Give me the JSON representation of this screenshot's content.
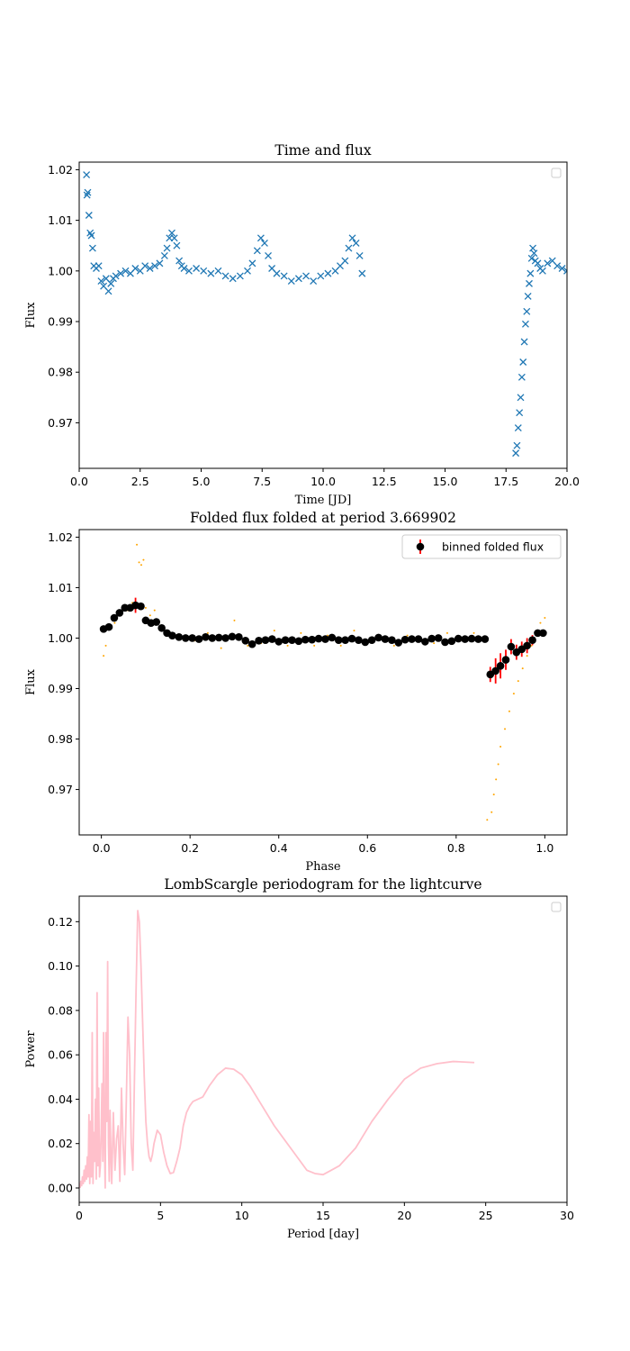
{
  "chart_data": [
    {
      "type": "scatter",
      "title": "Time and flux",
      "xlabel": "Time [JD]",
      "ylabel": "Flux",
      "xlim": [
        0,
        20
      ],
      "ylim": [
        0.961,
        1.0215
      ],
      "xticks": [
        0,
        2.5,
        5,
        7.5,
        10,
        12.5,
        15,
        17.5,
        20
      ],
      "xtick_labels": [
        "0.0",
        "2.5",
        "5.0",
        "7.5",
        "10.0",
        "12.5",
        "15.0",
        "17.5",
        "20.0"
      ],
      "yticks": [
        0.97,
        0.98,
        0.99,
        1.0,
        1.01,
        1.02
      ],
      "ytick_labels": [
        "0.97",
        "0.98",
        "0.99",
        "1.00",
        "1.01",
        "1.02"
      ],
      "marker": "x",
      "color": "#1f77b4",
      "legend": "top-right, empty",
      "grid": false,
      "series": [
        {
          "x": [
            0.3,
            0.32,
            0.35,
            0.4,
            0.45,
            0.5,
            0.55,
            0.6,
            0.7,
            0.8,
            0.9,
            1.0,
            1.1,
            1.2,
            1.3,
            1.4,
            1.5,
            1.7,
            1.9,
            2.1,
            2.3,
            2.5,
            2.7,
            2.9,
            3.1,
            3.3,
            3.5,
            3.6,
            3.7,
            3.8,
            3.9,
            4.0,
            4.1,
            4.2,
            4.3,
            4.5,
            4.8,
            5.1,
            5.4,
            5.7,
            6.0,
            6.3,
            6.6,
            6.9,
            7.1,
            7.3,
            7.45,
            7.6,
            7.75,
            7.9,
            8.1,
            8.4,
            8.7,
            9.0,
            9.3,
            9.6,
            9.9,
            10.2,
            10.5,
            10.7,
            10.9,
            11.05,
            11.2,
            11.35,
            11.5,
            11.6,
            17.9,
            17.95,
            18.0,
            18.05,
            18.1,
            18.15,
            18.2,
            18.25,
            18.3,
            18.35,
            18.4,
            18.45,
            18.5,
            18.55,
            18.6,
            18.65,
            18.7,
            18.8,
            18.9,
            19.0,
            19.2,
            19.4,
            19.6,
            19.8,
            20.0
          ],
          "y": [
            1.019,
            1.015,
            1.0155,
            1.011,
            1.0075,
            1.007,
            1.0045,
            1.001,
            1.0005,
            1.001,
            0.998,
            0.997,
            0.9985,
            0.996,
            0.9975,
            0.9985,
            0.999,
            0.9995,
            1.0,
            0.9995,
            1.0005,
            1.0,
            1.001,
            1.0005,
            1.001,
            1.0015,
            1.003,
            1.0045,
            1.0065,
            1.0075,
            1.0065,
            1.005,
            1.002,
            1.001,
            1.0005,
            1.0,
            1.0005,
            1.0,
            0.9995,
            1.0,
            0.999,
            0.9985,
            0.999,
            1.0,
            1.0015,
            1.004,
            1.0065,
            1.0055,
            1.003,
            1.0005,
            0.9995,
            0.999,
            0.998,
            0.9985,
            0.999,
            0.998,
            0.999,
            0.9995,
            1.0,
            1.001,
            1.002,
            1.0045,
            1.0065,
            1.0055,
            1.003,
            0.9995,
            0.964,
            0.9655,
            0.969,
            0.972,
            0.975,
            0.979,
            0.982,
            0.986,
            0.9895,
            0.992,
            0.995,
            0.9975,
            0.9995,
            1.0025,
            1.0045,
            1.0035,
            1.002,
            1.0015,
            1.0005,
            1.0,
            1.0015,
            1.002,
            1.001,
            1.0005,
            1.0
          ]
        }
      ]
    },
    {
      "type": "scatter",
      "title": "Folded flux folded at period 3.669902",
      "xlabel": "Phase",
      "ylabel": "Flux",
      "xlim": [
        -0.05,
        1.05
      ],
      "ylim": [
        0.961,
        1.0215
      ],
      "xticks": [
        0.0,
        0.2,
        0.4,
        0.6,
        0.8,
        1.0
      ],
      "xtick_labels": [
        "0.0",
        "0.2",
        "0.4",
        "0.6",
        "0.8",
        "1.0"
      ],
      "yticks": [
        0.97,
        0.98,
        0.99,
        1.0,
        1.01,
        1.02
      ],
      "ytick_labels": [
        "0.97",
        "0.98",
        "0.99",
        "1.00",
        "1.01",
        "1.02"
      ],
      "legend": "top-right",
      "grid": false,
      "series": [
        {
          "name": "binned folded flux",
          "color": "#000000",
          "errorbar_color": "#ff0000",
          "x": [
            0.005,
            0.017,
            0.029,
            0.041,
            0.053,
            0.065,
            0.077,
            0.089,
            0.1,
            0.112,
            0.124,
            0.136,
            0.148,
            0.16,
            0.175,
            0.19,
            0.205,
            0.22,
            0.235,
            0.25,
            0.265,
            0.28,
            0.295,
            0.31,
            0.325,
            0.34,
            0.355,
            0.37,
            0.385,
            0.4,
            0.415,
            0.43,
            0.445,
            0.46,
            0.475,
            0.49,
            0.505,
            0.52,
            0.535,
            0.55,
            0.565,
            0.58,
            0.595,
            0.61,
            0.625,
            0.64,
            0.655,
            0.67,
            0.685,
            0.7,
            0.715,
            0.73,
            0.745,
            0.76,
            0.775,
            0.79,
            0.805,
            0.82,
            0.835,
            0.85,
            0.865,
            0.877,
            0.889,
            0.9,
            0.912,
            0.924,
            0.936,
            0.948,
            0.96,
            0.972,
            0.984,
            0.996
          ],
          "y": [
            1.0018,
            1.0022,
            1.004,
            1.005,
            1.006,
            1.006,
            1.0065,
            1.0063,
            1.0035,
            1.003,
            1.0032,
            1.002,
            1.001,
            1.0005,
            1.0002,
            1.0,
            1.0,
            0.9998,
            1.0002,
            1.0,
            1.0001,
            1.0,
            1.0003,
            1.0002,
            0.9995,
            0.9988,
            0.9995,
            0.9996,
            0.9998,
            0.9993,
            0.9996,
            0.9996,
            0.9994,
            0.9997,
            0.9997,
            0.9999,
            0.9998,
            1.0001,
            0.9996,
            0.9996,
            0.9999,
            0.9996,
            0.9992,
            0.9996,
            1.0001,
            0.9998,
            0.9996,
            0.9991,
            0.9997,
            0.9998,
            0.9998,
            0.9993,
            0.9999,
            1.0,
            0.9992,
            0.9994,
            0.9999,
            0.9998,
            0.9999,
            0.9998,
            0.9998,
            0.9928,
            0.9935,
            0.9945,
            0.9957,
            0.9983,
            0.9972,
            0.9978,
            0.9985,
            0.9996,
            1.001,
            1.001
          ],
          "yerr": [
            0,
            0,
            0,
            0,
            0,
            0,
            0.0015,
            0.0007,
            0,
            0,
            0,
            0,
            0,
            0,
            0,
            0,
            0,
            0,
            0,
            0,
            0,
            0,
            0,
            0,
            0,
            0,
            0,
            0,
            0,
            0,
            0,
            0,
            0,
            0,
            0,
            0,
            0,
            0,
            0,
            0,
            0,
            0,
            0,
            0,
            0,
            0,
            0,
            0,
            0,
            0,
            0,
            0,
            0,
            0,
            0,
            0,
            0,
            0,
            0,
            0,
            0,
            0.0015,
            0.0025,
            0.0025,
            0.002,
            0.0015,
            0.0015,
            0.0015,
            0.0015,
            0.001,
            0.0005,
            0.0005
          ]
        },
        {
          "color": "#ffa500",
          "x": [
            0.005,
            0.01,
            0.02,
            0.03,
            0.04,
            0.05,
            0.06,
            0.07,
            0.08,
            0.085,
            0.09,
            0.095,
            0.1,
            0.11,
            0.12,
            0.13,
            0.15,
            0.18,
            0.21,
            0.24,
            0.27,
            0.3,
            0.33,
            0.36,
            0.39,
            0.42,
            0.45,
            0.48,
            0.51,
            0.54,
            0.57,
            0.6,
            0.63,
            0.66,
            0.69,
            0.72,
            0.75,
            0.78,
            0.81,
            0.84,
            0.87,
            0.88,
            0.885,
            0.89,
            0.895,
            0.9,
            0.91,
            0.92,
            0.93,
            0.94,
            0.95,
            0.96,
            0.97,
            0.98,
            0.99,
            1.0
          ],
          "y": [
            0.9965,
            0.9985,
            1.002,
            1.003,
            1.0045,
            1.006,
            1.0055,
            1.007,
            1.0185,
            1.015,
            1.0145,
            1.0155,
            1.006,
            1.0045,
            1.0055,
            1.003,
            1.0015,
            1.0,
            0.9995,
            1.001,
            0.998,
            1.0035,
            0.9985,
            0.999,
            1.0015,
            0.9985,
            1.001,
            0.9985,
            1.0005,
            0.9985,
            1.0015,
            0.999,
            1.0,
            0.9985,
            1.0005,
            0.9995,
            0.999,
            1.001,
            0.9995,
            1.001,
            0.964,
            0.9655,
            0.969,
            0.972,
            0.975,
            0.9785,
            0.982,
            0.9855,
            0.989,
            0.9915,
            0.994,
            0.9965,
            0.9985,
            1.001,
            1.003,
            1.004
          ]
        }
      ]
    },
    {
      "type": "line",
      "title": "LombScargle periodogram for the lightcurve",
      "xlabel": "Period [day]",
      "ylabel": "Power",
      "xlim": [
        0,
        30
      ],
      "ylim": [
        -0.0065,
        0.1315
      ],
      "xticks": [
        0,
        5,
        10,
        15,
        20,
        25,
        30
      ],
      "xtick_labels": [
        "0",
        "5",
        "10",
        "15",
        "20",
        "25",
        "30"
      ],
      "yticks": [
        0.0,
        0.02,
        0.04,
        0.06,
        0.08,
        0.1,
        0.12
      ],
      "ytick_labels": [
        "0.00",
        "0.02",
        "0.04",
        "0.06",
        "0.08",
        "0.10",
        "0.12"
      ],
      "legend": "top-right, empty",
      "grid": false,
      "series": [
        {
          "color": "#ffc0cb",
          "x": [
            0.05,
            0.1,
            0.15,
            0.2,
            0.25,
            0.3,
            0.35,
            0.4,
            0.45,
            0.5,
            0.55,
            0.6,
            0.65,
            0.7,
            0.75,
            0.8,
            0.85,
            0.9,
            0.95,
            1.0,
            1.05,
            1.1,
            1.15,
            1.2,
            1.25,
            1.3,
            1.35,
            1.4,
            1.45,
            1.5,
            1.55,
            1.6,
            1.65,
            1.7,
            1.75,
            1.8,
            1.85,
            1.9,
            1.95,
            2.0,
            2.1,
            2.2,
            2.3,
            2.4,
            2.5,
            2.6,
            2.7,
            2.8,
            2.9,
            3.0,
            3.1,
            3.2,
            3.3,
            3.4,
            3.5,
            3.6,
            3.7,
            3.8,
            3.9,
            4.0,
            4.1,
            4.2,
            4.3,
            4.4,
            4.5,
            4.6,
            4.8,
            5.0,
            5.2,
            5.4,
            5.6,
            5.8,
            6.0,
            6.2,
            6.4,
            6.6,
            6.8,
            7.0,
            7.3,
            7.6,
            8.0,
            8.5,
            9.0,
            9.5,
            10.0,
            10.5,
            11.0,
            12.0,
            13.0,
            14.0,
            14.5,
            15.0,
            15.5,
            16.0,
            17.0,
            18.0,
            19.0,
            20.0,
            21.0,
            22.0,
            23.0,
            24.3
          ],
          "y": [
            0.0,
            0.003,
            0.001,
            0.005,
            0.002,
            0.008,
            0.003,
            0.01,
            0.004,
            0.014,
            0.005,
            0.033,
            0.002,
            0.03,
            0.005,
            0.07,
            0.002,
            0.025,
            0.012,
            0.04,
            0.004,
            0.088,
            0.01,
            0.045,
            0.005,
            0.01,
            0.025,
            0.047,
            0.012,
            0.07,
            0.02,
            0.0,
            0.07,
            0.03,
            0.102,
            0.02,
            0.003,
            0.035,
            0.015,
            0.002,
            0.034,
            0.008,
            0.022,
            0.028,
            0.003,
            0.045,
            0.02,
            0.006,
            0.04,
            0.077,
            0.06,
            0.02,
            0.008,
            0.05,
            0.09,
            0.125,
            0.12,
            0.1,
            0.075,
            0.05,
            0.03,
            0.02,
            0.014,
            0.012,
            0.015,
            0.02,
            0.026,
            0.024,
            0.016,
            0.01,
            0.0065,
            0.007,
            0.012,
            0.018,
            0.028,
            0.034,
            0.037,
            0.039,
            0.04,
            0.041,
            0.046,
            0.051,
            0.054,
            0.0535,
            0.051,
            0.046,
            0.04,
            0.028,
            0.018,
            0.008,
            0.0065,
            0.006,
            0.008,
            0.01,
            0.018,
            0.03,
            0.04,
            0.049,
            0.054,
            0.056,
            0.057,
            0.0565
          ]
        }
      ]
    }
  ]
}
